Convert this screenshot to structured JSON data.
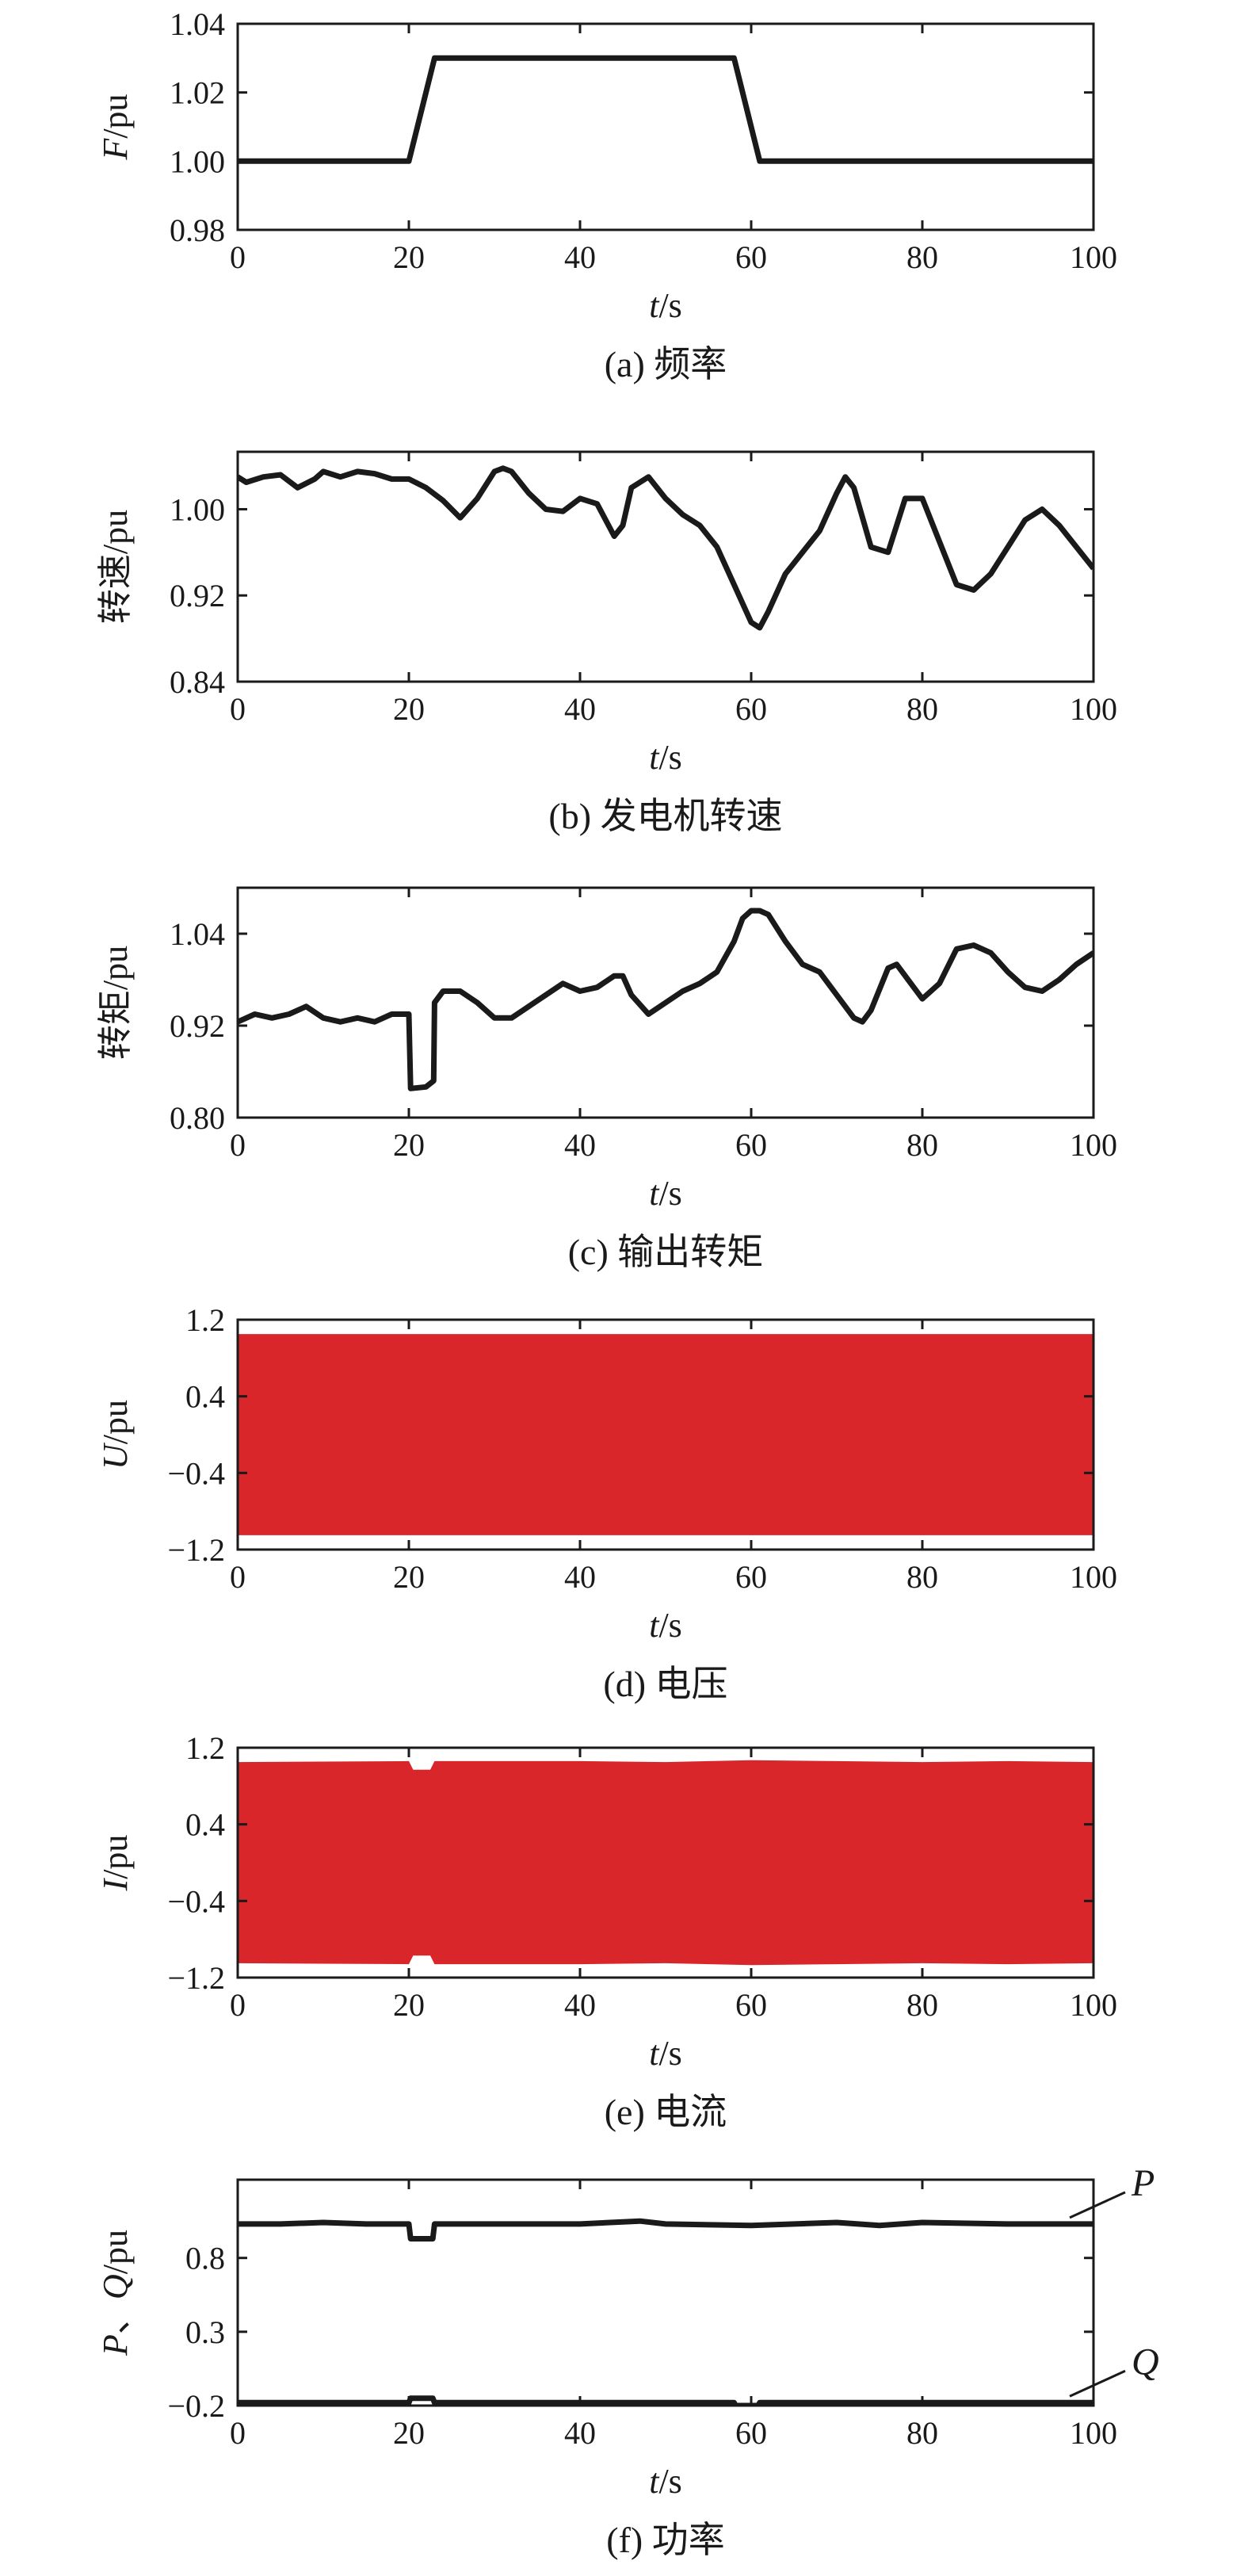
{
  "colors": {
    "line": "#1a1a1a",
    "fill": "#d8262b"
  },
  "chart_data": [
    {
      "id": "a",
      "type": "line",
      "caption": "(a) 频率",
      "ylabel": {
        "italic": "F",
        "rest": "/pu"
      },
      "xlabel": {
        "italic": "t",
        "rest": "/s"
      },
      "xlim": [
        0,
        100
      ],
      "ylim": [
        0.98,
        1.04
      ],
      "xticks": [
        0,
        20,
        40,
        60,
        80,
        100
      ],
      "yticks": [
        0.98,
        1.0,
        1.02,
        1.04
      ],
      "ytick_labels": [
        "0.98",
        "1.00",
        "1.02",
        "1.04"
      ],
      "series": [
        {
          "x": [
            0,
            20,
            23,
            58,
            61,
            100
          ],
          "y": [
            1.0,
            1.0,
            1.03,
            1.03,
            1.0,
            1.0
          ]
        }
      ]
    },
    {
      "id": "b",
      "type": "line",
      "caption": "(b) 发电机转速",
      "ylabel": {
        "italic": "",
        "rest": "转速/pu"
      },
      "xlabel": {
        "italic": "t",
        "rest": "/s"
      },
      "xlim": [
        0,
        100
      ],
      "ylim": [
        0.84,
        1.0533
      ],
      "xticks": [
        0,
        20,
        40,
        60,
        80,
        100
      ],
      "yticks": [
        0.84,
        0.92,
        1.0
      ],
      "ytick_labels": [
        "0.84",
        "0.92",
        "1.00"
      ],
      "series": [
        {
          "x": [
            0,
            1,
            3,
            5,
            7,
            9,
            10,
            12,
            14,
            16,
            18,
            20,
            22,
            24,
            26,
            28,
            30,
            31,
            32,
            34,
            36,
            38,
            40,
            42,
            44,
            45,
            46,
            48,
            50,
            52,
            54,
            56,
            58,
            60,
            61,
            62,
            64,
            66,
            68,
            70,
            71,
            72,
            74,
            76,
            77,
            78,
            80,
            82,
            84,
            86,
            88,
            90,
            92,
            94,
            96,
            98,
            100
          ],
          "y": [
            1.03,
            1.025,
            1.03,
            1.032,
            1.02,
            1.028,
            1.035,
            1.03,
            1.035,
            1.033,
            1.028,
            1.028,
            1.02,
            1.008,
            0.992,
            1.01,
            1.035,
            1.038,
            1.035,
            1.015,
            1.0,
            0.998,
            1.01,
            1.005,
            0.975,
            0.985,
            1.02,
            1.03,
            1.01,
            0.995,
            0.985,
            0.965,
            0.93,
            0.895,
            0.89,
            0.905,
            0.94,
            0.96,
            0.98,
            1.015,
            1.03,
            1.02,
            0.965,
            0.96,
            0.985,
            1.01,
            1.01,
            0.97,
            0.93,
            0.925,
            0.94,
            0.965,
            0.99,
            1.0,
            0.985,
            0.965,
            0.945
          ]
        }
      ]
    },
    {
      "id": "c",
      "type": "line",
      "caption": "(c) 输出转矩",
      "ylabel": {
        "italic": "",
        "rest": "转矩/pu"
      },
      "xlabel": {
        "italic": "t",
        "rest": "/s"
      },
      "xlim": [
        0,
        100
      ],
      "ylim": [
        0.8,
        1.1
      ],
      "xticks": [
        0,
        20,
        40,
        60,
        80,
        100
      ],
      "yticks": [
        0.8,
        0.92,
        1.04
      ],
      "ytick_labels": [
        "0.80",
        "0.92",
        "1.04"
      ],
      "series": [
        {
          "x": [
            0,
            2,
            4,
            6,
            8,
            10,
            12,
            14,
            16,
            18,
            20,
            20.2,
            22,
            22.9,
            23,
            24,
            26,
            28,
            30,
            32,
            34,
            36,
            38,
            40,
            42,
            44,
            45,
            46,
            48,
            50,
            52,
            54,
            56,
            58,
            59,
            60,
            61,
            62,
            64,
            66,
            68,
            70,
            72,
            73,
            74,
            76,
            77,
            78,
            80,
            82,
            84,
            86,
            88,
            90,
            92,
            94,
            96,
            98,
            100
          ],
          "y": [
            0.925,
            0.935,
            0.93,
            0.935,
            0.945,
            0.93,
            0.925,
            0.93,
            0.925,
            0.935,
            0.935,
            0.838,
            0.84,
            0.848,
            0.95,
            0.965,
            0.965,
            0.95,
            0.93,
            0.93,
            0.945,
            0.96,
            0.975,
            0.965,
            0.97,
            0.985,
            0.985,
            0.96,
            0.935,
            0.95,
            0.965,
            0.975,
            0.99,
            1.03,
            1.06,
            1.07,
            1.07,
            1.065,
            1.03,
            1.0,
            0.99,
            0.96,
            0.93,
            0.925,
            0.94,
            0.995,
            1.0,
            0.985,
            0.955,
            0.975,
            1.02,
            1.025,
            1.015,
            0.99,
            0.97,
            0.965,
            0.98,
            1.0,
            1.015
          ]
        }
      ]
    },
    {
      "id": "d",
      "type": "area",
      "caption": "(d) 电压",
      "ylabel": {
        "italic": "U",
        "rest": "/pu"
      },
      "xlabel": {
        "italic": "t",
        "rest": "/s"
      },
      "xlim": [
        0,
        100
      ],
      "ylim": [
        -1.2,
        1.2
      ],
      "xticks": [
        0,
        20,
        40,
        60,
        80,
        100
      ],
      "yticks": [
        -1.2,
        -0.4,
        0.4,
        1.2
      ],
      "ytick_labels": [
        "−1.2",
        "−0.4",
        "0.4",
        "1.2"
      ],
      "grid": false,
      "band": {
        "x": [
          0,
          100
        ],
        "upper": [
          1.05,
          1.05
        ],
        "lower": [
          -1.05,
          -1.05
        ]
      }
    },
    {
      "id": "e",
      "type": "area",
      "caption": "(e) 电流",
      "ylabel": {
        "italic": "I",
        "rest": "/pu"
      },
      "xlabel": {
        "italic": "t",
        "rest": "/s"
      },
      "xlim": [
        0,
        100
      ],
      "ylim": [
        -1.2,
        1.2
      ],
      "xticks": [
        0,
        20,
        40,
        60,
        80,
        100
      ],
      "yticks": [
        -1.2,
        -0.4,
        0.4,
        1.2
      ],
      "ytick_labels": [
        "−1.2",
        "−0.4",
        "0.4",
        "1.2"
      ],
      "band": {
        "x": [
          0,
          20,
          20.5,
          22.5,
          23,
          40,
          50,
          60,
          70,
          80,
          90,
          100
        ],
        "upper": [
          1.05,
          1.06,
          0.97,
          0.97,
          1.06,
          1.06,
          1.05,
          1.07,
          1.06,
          1.05,
          1.06,
          1.05
        ],
        "lower": [
          -1.05,
          -1.06,
          -0.97,
          -0.97,
          -1.06,
          -1.06,
          -1.05,
          -1.07,
          -1.06,
          -1.05,
          -1.06,
          -1.05
        ]
      }
    },
    {
      "id": "f",
      "type": "line",
      "caption": "(f) 功率",
      "ylabel": {
        "italic": "P",
        "rest": "、Q/pu"
      },
      "xlabel": {
        "italic": "t",
        "rest": "/s"
      },
      "xlim": [
        0,
        100
      ],
      "ylim": [
        -0.2,
        1.33
      ],
      "xticks": [
        0,
        20,
        40,
        60,
        80,
        100
      ],
      "yticks": [
        -0.2,
        0.3,
        0.8
      ],
      "ytick_labels": [
        "−0.2",
        "0.3",
        "0.8"
      ],
      "series": [
        {
          "name": "P",
          "x": [
            0,
            5,
            10,
            15,
            20,
            20.2,
            22.8,
            23,
            30,
            40,
            47,
            50,
            60,
            70,
            75,
            80,
            90,
            100
          ],
          "y": [
            1.03,
            1.03,
            1.04,
            1.03,
            1.03,
            0.93,
            0.93,
            1.03,
            1.03,
            1.03,
            1.05,
            1.03,
            1.02,
            1.04,
            1.02,
            1.04,
            1.03,
            1.03
          ]
        },
        {
          "name": "Q",
          "x": [
            0,
            20,
            20.2,
            22.8,
            23,
            58,
            58.2,
            60.8,
            61,
            100
          ],
          "y": [
            -0.18,
            -0.18,
            -0.15,
            -0.15,
            -0.18,
            -0.18,
            -0.2,
            -0.2,
            -0.18,
            -0.18
          ]
        }
      ]
    }
  ]
}
